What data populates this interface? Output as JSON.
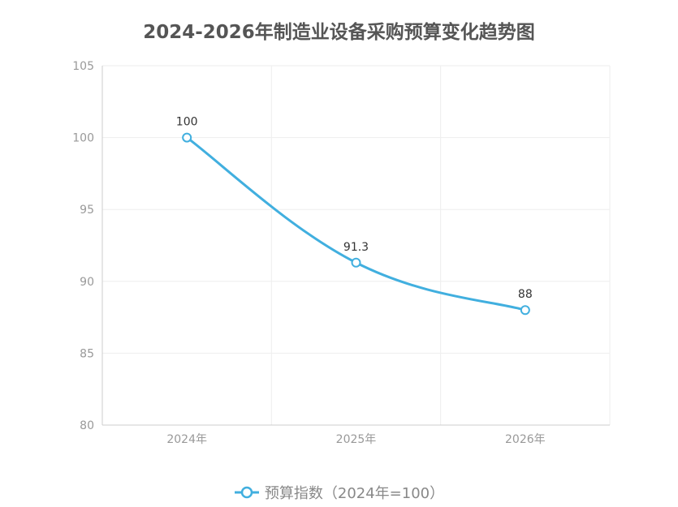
{
  "chart_data": {
    "type": "line",
    "title": "2024-2026年制造业设备采购预算变化趋势图",
    "categories": [
      "2024年",
      "2025年",
      "2026年"
    ],
    "series": [
      {
        "name": "预算指数（2024年=100）",
        "values": [
          100,
          91.3,
          88
        ],
        "color": "#41afdf"
      }
    ],
    "data_labels": [
      "100",
      "91.3",
      "88"
    ],
    "ylim": [
      80,
      105
    ],
    "yticks": [
      80,
      85,
      90,
      95,
      100,
      105
    ],
    "grid": true,
    "smooth": true,
    "legend_position": "bottom"
  }
}
